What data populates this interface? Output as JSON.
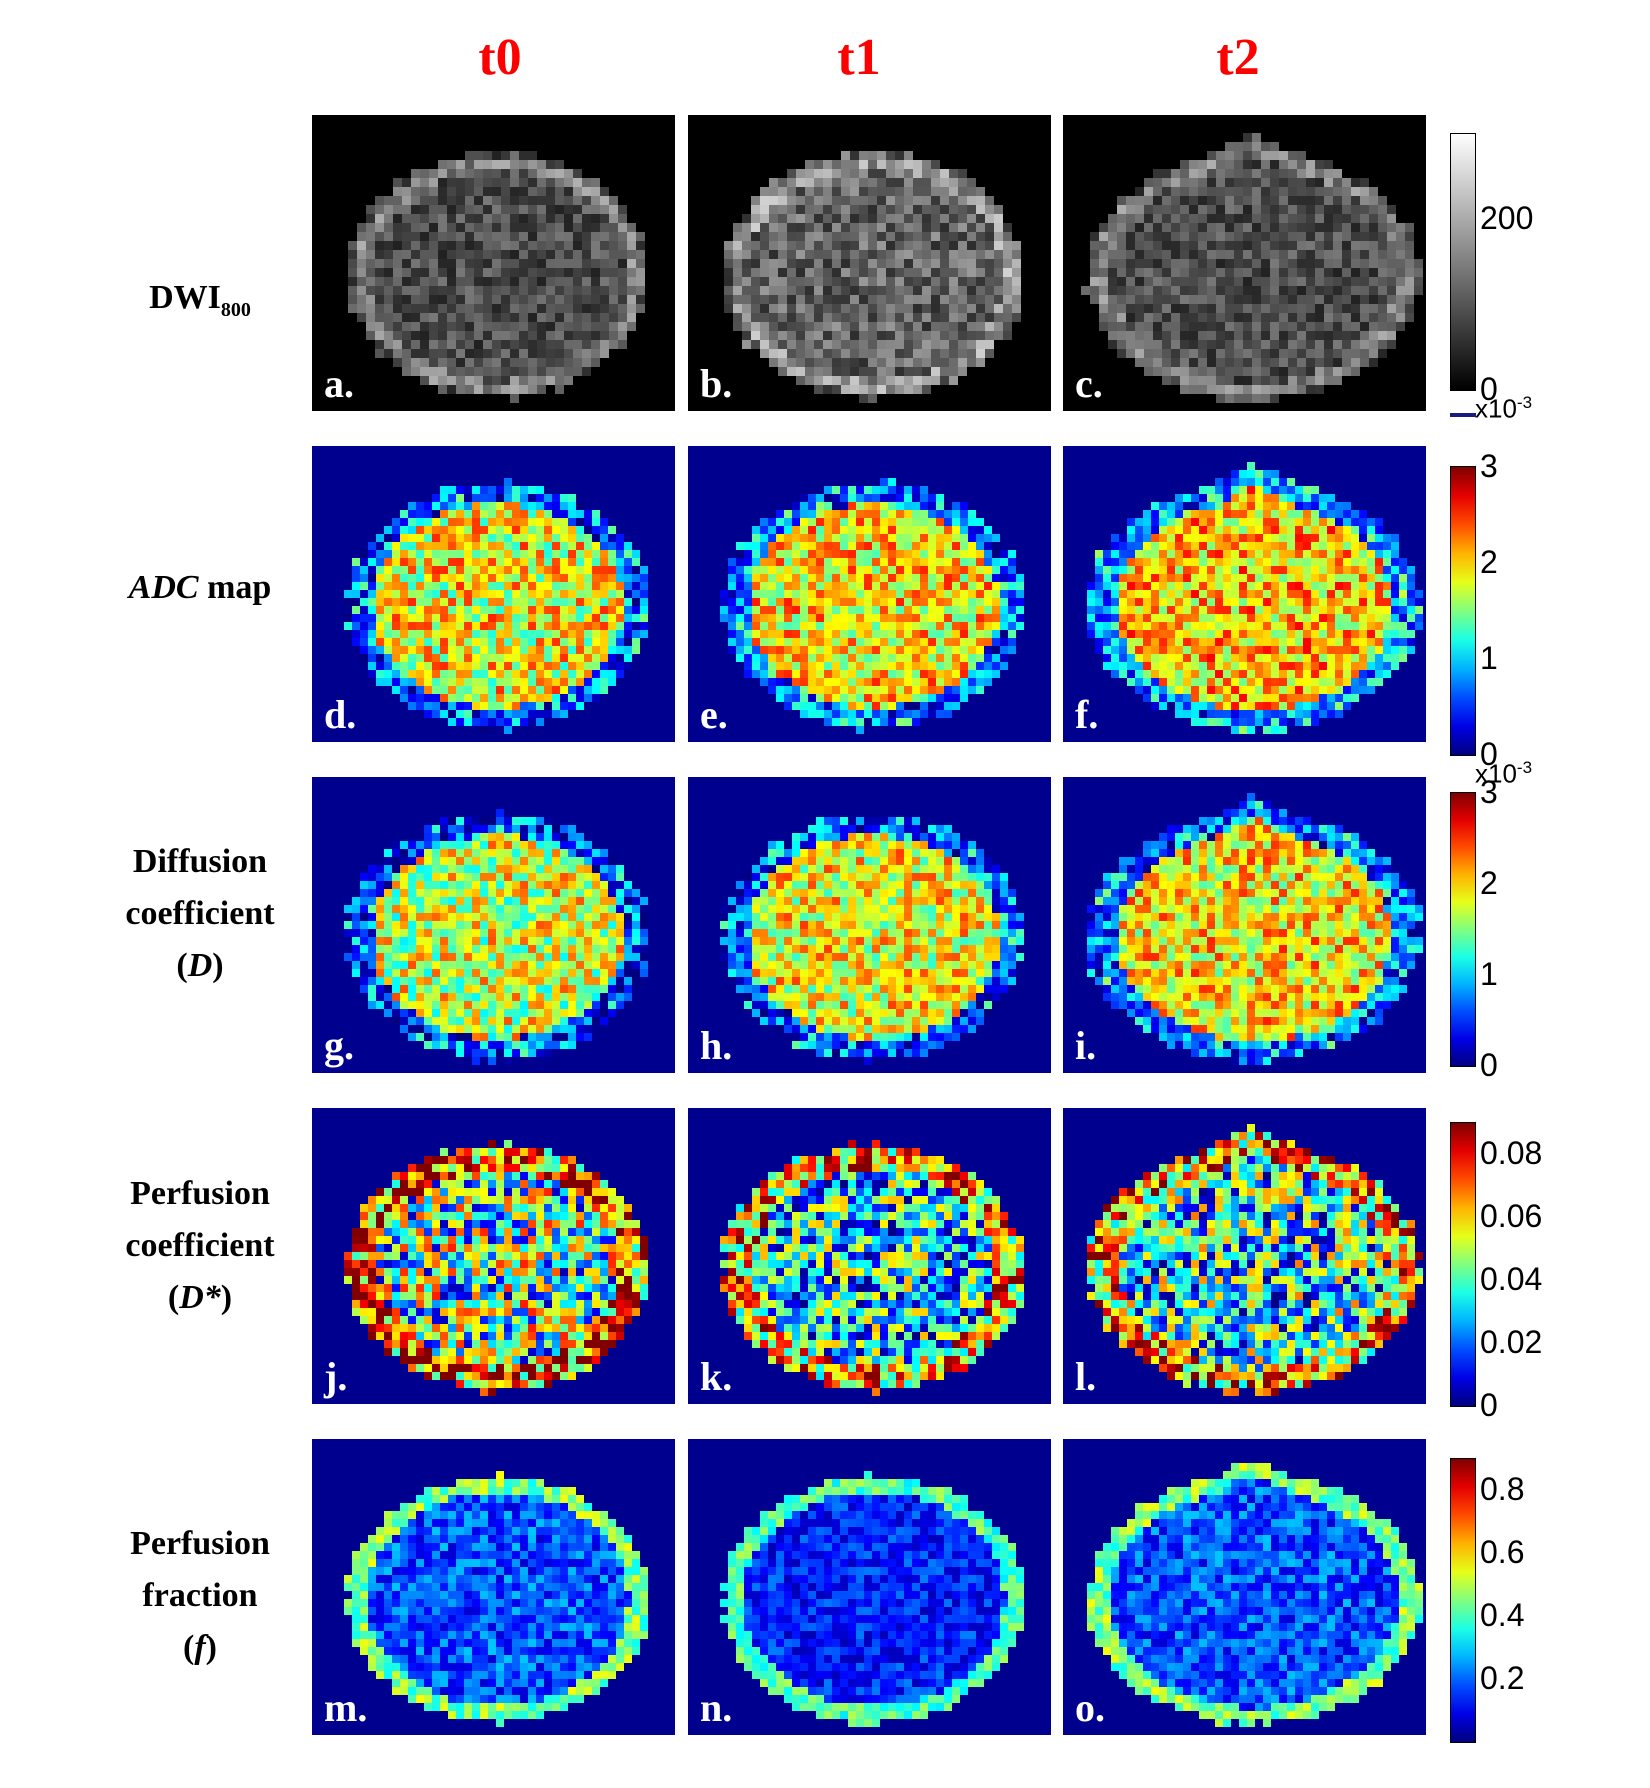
{
  "columns": [
    "t0",
    "t1",
    "t2"
  ],
  "rows": [
    {
      "label_html": "DWI<sub style=\"font-size:20px\">800</sub>",
      "label_lines": [
        "DWI800"
      ],
      "panels": [
        "a.",
        "b.",
        "c."
      ],
      "colormap": "gray"
    },
    {
      "label_lines": [
        "ADC map"
      ],
      "panels": [
        "d.",
        "e.",
        "f."
      ],
      "colormap": "jet"
    },
    {
      "label_lines": [
        "Diffusion",
        "coefficient",
        "(D)"
      ],
      "panels": [
        "g.",
        "h.",
        "i."
      ],
      "colormap": "jet"
    },
    {
      "label_lines": [
        "Perfusion",
        "coefficient",
        "(D*)"
      ],
      "panels": [
        "j.",
        "k.",
        "l."
      ],
      "colormap": "jet"
    },
    {
      "label_lines": [
        "Perfusion",
        "fraction",
        "(f)"
      ],
      "panels": [
        "m.",
        "n.",
        "o."
      ],
      "colormap": "jet"
    }
  ],
  "colorbars": [
    {
      "ticks": [
        "200",
        "0"
      ],
      "tick_values": [
        200,
        0
      ],
      "max": 300,
      "exponent": "x10",
      "exponent_power": "-3"
    },
    {
      "ticks": [
        "3",
        "2",
        "1",
        "0"
      ],
      "tick_values": [
        3,
        2,
        1,
        0
      ],
      "max": 3,
      "exponent": "x10",
      "exponent_power": "-3"
    },
    {
      "ticks": [
        "3",
        "2",
        "1",
        "0"
      ],
      "tick_values": [
        3,
        2,
        1,
        0
      ],
      "max": 3
    },
    {
      "ticks": [
        "0.08",
        "0.06",
        "0.04",
        "0.02",
        "0"
      ],
      "tick_values": [
        0.08,
        0.06,
        0.04,
        0.02,
        0
      ],
      "max": 0.09
    },
    {
      "ticks": [
        "0.8",
        "0.6",
        "0.4",
        "0.2"
      ],
      "tick_values": [
        0.8,
        0.6,
        0.4,
        0.2
      ],
      "max": 0.9
    }
  ],
  "colors": {
    "title": "#ff0000",
    "panel_bg_jet": "#00008f",
    "panel_bg_gray": "#000000"
  }
}
